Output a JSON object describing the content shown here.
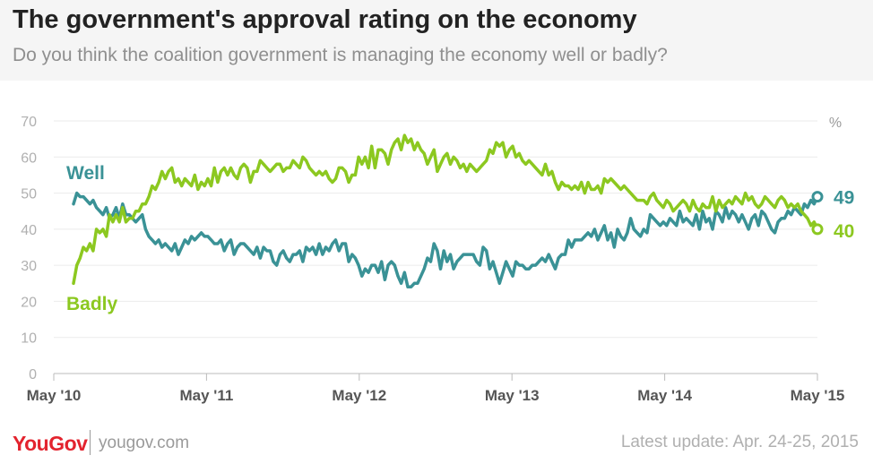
{
  "header": {
    "title": "The government's approval rating on the economy",
    "subtitle": "Do you think the coalition government is managing the economy well or badly?"
  },
  "footer": {
    "logo": "YouGov",
    "site": "yougov.com",
    "update": "Latest update: Apr. 24-25, 2015"
  },
  "colors": {
    "well": "#3a9296",
    "badly": "#8cc820"
  },
  "chart_data": {
    "type": "line",
    "title": "The government's approval rating on the economy",
    "subtitle": "Do you think the coalition government is managing the economy well or badly?",
    "unit_label": "%",
    "ylim": [
      0,
      70
    ],
    "yticks": [
      0,
      10,
      20,
      30,
      40,
      50,
      60,
      70
    ],
    "x_start": "May '10",
    "x_end": "May '15",
    "xticks": [
      "May '10",
      "May '11",
      "May '12",
      "May '13",
      "May '14",
      "May '15"
    ],
    "x_step": "approximately weekly, May 2010 to April 2015",
    "grid": true,
    "series": [
      {
        "name": "Well",
        "color": "#3a9296",
        "end_label": "49",
        "values": [
          47,
          50,
          49,
          49,
          48,
          47,
          48,
          46,
          45,
          44,
          46,
          43,
          44,
          46,
          43,
          47,
          44,
          44,
          43,
          42,
          43,
          44,
          40,
          38,
          37,
          36,
          37,
          35,
          36,
          35,
          34,
          36,
          33,
          35,
          37,
          36,
          38,
          37,
          38,
          39,
          38,
          38,
          37,
          36,
          36,
          37,
          34,
          36,
          37,
          33,
          35,
          36,
          36,
          35,
          34,
          33,
          35,
          32,
          35,
          34,
          34,
          31,
          30,
          33,
          34,
          32,
          31,
          33,
          33,
          34,
          31,
          35,
          34,
          35,
          33,
          36,
          33,
          35,
          34,
          36,
          37,
          34,
          36,
          36,
          31,
          33,
          32,
          30,
          27,
          29,
          28,
          30,
          30,
          28,
          31,
          26,
          30,
          31,
          30,
          27,
          25,
          28,
          24,
          24,
          25,
          25,
          27,
          29,
          32,
          31,
          36,
          34,
          29,
          34,
          31,
          33,
          29,
          31,
          32,
          33,
          33,
          33,
          33,
          31,
          30,
          35,
          34,
          29,
          31,
          28,
          25,
          28,
          31,
          29,
          27,
          31,
          30,
          30,
          29,
          29,
          30,
          30,
          31,
          32,
          31,
          33,
          31,
          29,
          32,
          33,
          33,
          37,
          35,
          37,
          37,
          37,
          38,
          39,
          38,
          40,
          37,
          39,
          41,
          37,
          39,
          35,
          40,
          38,
          37,
          39,
          43,
          40,
          39,
          38,
          40,
          39,
          44,
          43,
          42,
          41,
          42,
          41,
          43,
          42,
          41,
          45,
          42,
          43,
          42,
          41,
          44,
          40,
          45,
          42,
          43,
          40,
          45,
          44,
          42,
          46,
          43,
          45,
          44,
          42,
          44,
          42,
          40,
          43,
          44,
          41,
          45,
          44,
          42,
          40,
          39,
          42,
          43,
          43,
          45,
          44,
          46,
          45,
          44,
          47,
          46,
          48,
          47,
          49
        ]
      },
      {
        "name": "Badly",
        "color": "#8cc820",
        "end_label": "40",
        "values": [
          25,
          30,
          32,
          35,
          34,
          36,
          34,
          40,
          39,
          40,
          38,
          44,
          42,
          44,
          42,
          46,
          42,
          43,
          43,
          45,
          45,
          47,
          47,
          49,
          52,
          51,
          53,
          56,
          54,
          56,
          57,
          53,
          54,
          52,
          54,
          53,
          52,
          55,
          51,
          53,
          52,
          54,
          52,
          57,
          53,
          56,
          57,
          55,
          57,
          55,
          54,
          57,
          58,
          57,
          53,
          56,
          56,
          59,
          58,
          57,
          56,
          57,
          58,
          58,
          56,
          57,
          57,
          59,
          58,
          57,
          60,
          59,
          57,
          56,
          55,
          56,
          55,
          56,
          54,
          53,
          54,
          57,
          57,
          56,
          53,
          55,
          55,
          60,
          58,
          60,
          57,
          63,
          57,
          62,
          62,
          61,
          58,
          62,
          64,
          65,
          62,
          66,
          64,
          65,
          62,
          64,
          62,
          61,
          58,
          60,
          62,
          56,
          58,
          60,
          61,
          58,
          60,
          59,
          57,
          58,
          56,
          58,
          57,
          56,
          57,
          58,
          59,
          62,
          61,
          64,
          63,
          64,
          60,
          62,
          63,
          60,
          61,
          59,
          58,
          59,
          58,
          57,
          56,
          55,
          58,
          55,
          56,
          53,
          51,
          53,
          52,
          52,
          51,
          52,
          51,
          53,
          50,
          53,
          51,
          51,
          52,
          50,
          54,
          53,
          54,
          53,
          52,
          51,
          52,
          51,
          50,
          49,
          48,
          48,
          48,
          47,
          49,
          50,
          48,
          47,
          46,
          48,
          47,
          45,
          46,
          47,
          48,
          47,
          45,
          48,
          46,
          45,
          47,
          46,
          46,
          49,
          45,
          48,
          46,
          47,
          48,
          47,
          49,
          48,
          47,
          50,
          48,
          49,
          47,
          46,
          47,
          49,
          48,
          47,
          46,
          48,
          49,
          48,
          46,
          47,
          46,
          47,
          45,
          44,
          43,
          41,
          42,
          40
        ]
      }
    ],
    "series_labels": {
      "Well": "Well",
      "Badly": "Badly"
    }
  }
}
